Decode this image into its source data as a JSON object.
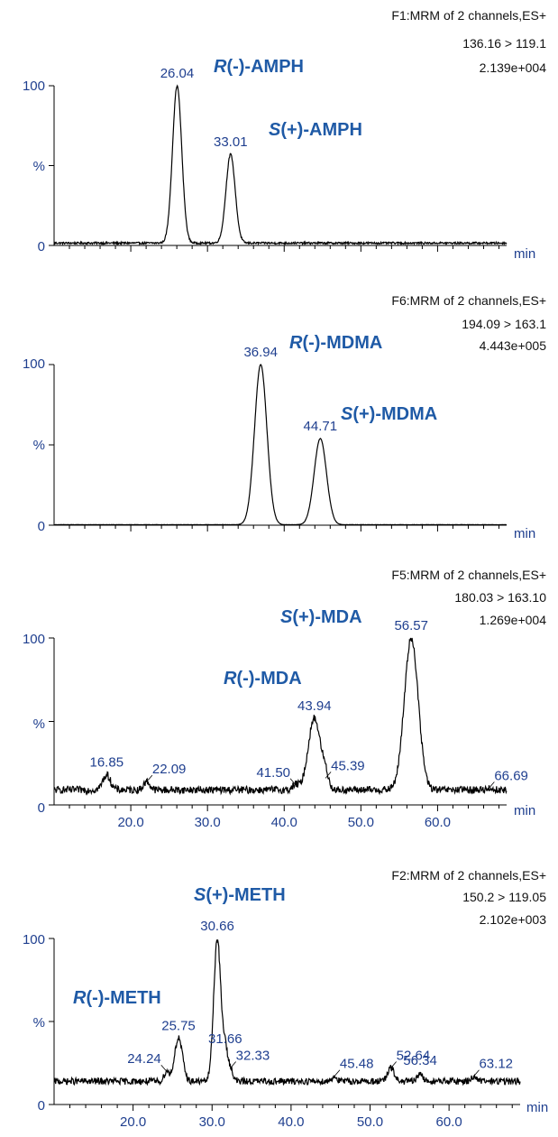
{
  "chart_data": [
    {
      "type": "line",
      "header": [
        "F1:MRM of 2 channels,ES+",
        "136.16 > 119.1",
        "2.139e+004"
      ],
      "y_ticks": [
        "100",
        "%",
        "0"
      ],
      "x_unit": "min",
      "x_tick_labels": [],
      "xlim": [
        10,
        69
      ],
      "ylim": [
        0,
        100
      ],
      "baseline": 1.5,
      "noise": 0.6,
      "peaks": [
        {
          "rt": 26.04,
          "height": 100,
          "width": 0.6,
          "label": "26.04"
        },
        {
          "rt": 33.01,
          "height": 57,
          "width": 0.6,
          "label": "33.01"
        }
      ],
      "compounds": [
        {
          "prefix": "R",
          "suffix": "(-)-AMPH"
        },
        {
          "prefix": "S",
          "suffix": "(+)-AMPH"
        }
      ]
    },
    {
      "type": "line",
      "header": [
        "F6:MRM of 2 channels,ES+",
        "194.09 > 163.1",
        "4.443e+005"
      ],
      "y_ticks": [
        "100",
        "%",
        "0"
      ],
      "x_unit": "min",
      "x_tick_labels": [],
      "xlim": [
        10,
        69
      ],
      "ylim": [
        0,
        100
      ],
      "baseline": 0.3,
      "noise": 0.1,
      "peaks": [
        {
          "rt": 36.94,
          "height": 100,
          "width": 0.8,
          "label": "36.94"
        },
        {
          "rt": 44.71,
          "height": 54,
          "width": 0.8,
          "label": "44.71"
        }
      ],
      "compounds": [
        {
          "prefix": "R",
          "suffix": "(-)-MDMA"
        },
        {
          "prefix": "S",
          "suffix": "(+)-MDMA"
        }
      ]
    },
    {
      "type": "line",
      "header": [
        "F5:MRM of 2 channels,ES+",
        "180.03 > 163.10",
        "1.269e+004"
      ],
      "y_ticks": [
        "100",
        "%",
        "0"
      ],
      "x_unit": "min",
      "x_tick_labels": [
        "20.0",
        "30.0",
        "40.0",
        "50.0",
        "60.0"
      ],
      "xlim": [
        10,
        69
      ],
      "ylim": [
        0,
        100
      ],
      "baseline": 9,
      "noise": 2.2,
      "peaks": [
        {
          "rt": 16.85,
          "height": 18,
          "width": 0.5,
          "label": "16.85"
        },
        {
          "rt": 22.09,
          "height": 14,
          "width": 0.4,
          "label": "22.09"
        },
        {
          "rt": 41.5,
          "height": 12,
          "width": 0.4,
          "label": "41.50"
        },
        {
          "rt": 43.94,
          "height": 52,
          "width": 0.8,
          "label": "43.94"
        },
        {
          "rt": 45.39,
          "height": 16,
          "width": 0.4,
          "label": "45.39"
        },
        {
          "rt": 56.57,
          "height": 100,
          "width": 0.9,
          "label": "56.57"
        },
        {
          "rt": 66.69,
          "height": 10,
          "width": 0.4,
          "label": "66.69"
        }
      ],
      "compounds": [
        {
          "prefix": "S",
          "suffix": "(+)-MDA"
        },
        {
          "prefix": "R",
          "suffix": "(-)-MDA"
        }
      ]
    },
    {
      "type": "line",
      "header": [
        "F2:MRM of 2 channels,ES+",
        "150.2 > 119.05",
        "2.102e+003"
      ],
      "y_ticks": [
        "100",
        "%",
        "0"
      ],
      "x_unit": "min",
      "x_tick_labels": [
        "20.0",
        "30.0",
        "40.0",
        "50.0",
        "60.0"
      ],
      "xlim": [
        10,
        69
      ],
      "ylim": [
        0,
        100
      ],
      "baseline": 14,
      "noise": 2.0,
      "peaks": [
        {
          "rt": 24.24,
          "height": 20,
          "width": 0.3,
          "label": "24.24"
        },
        {
          "rt": 25.75,
          "height": 40,
          "width": 0.5,
          "label": "25.75"
        },
        {
          "rt": 30.66,
          "height": 100,
          "width": 0.45,
          "label": "30.66"
        },
        {
          "rt": 31.66,
          "height": 32,
          "width": 0.3,
          "label": "31.66"
        },
        {
          "rt": 32.33,
          "height": 22,
          "width": 0.3,
          "label": "32.33"
        },
        {
          "rt": 45.48,
          "height": 17,
          "width": 0.3,
          "label": "45.48"
        },
        {
          "rt": 52.64,
          "height": 22,
          "width": 0.4,
          "label": "52.64"
        },
        {
          "rt": 56.34,
          "height": 19,
          "width": 0.3,
          "label": "56.34"
        },
        {
          "rt": 63.12,
          "height": 17,
          "width": 0.3,
          "label": "63.12"
        }
      ],
      "compounds": [
        {
          "prefix": "S",
          "suffix": "(+)-METH"
        },
        {
          "prefix": "R",
          "suffix": "(-)-METH"
        }
      ]
    }
  ],
  "colors": {
    "tick_label": "#1f3f8f",
    "compound": "#1f5aa6",
    "trace": "#000000",
    "header": "#111111"
  }
}
